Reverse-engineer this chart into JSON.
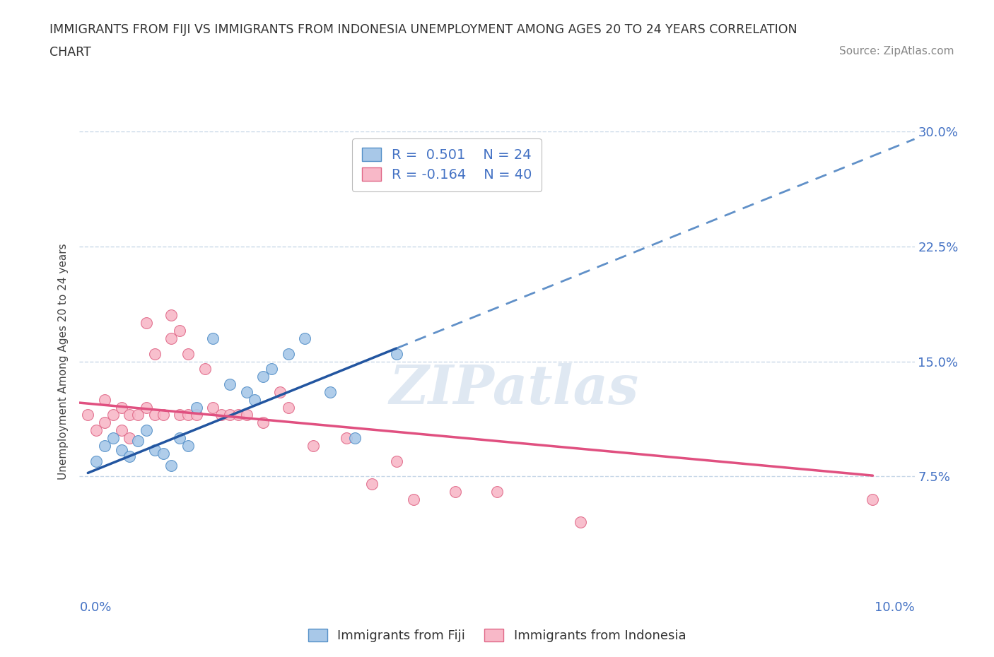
{
  "title_line1": "IMMIGRANTS FROM FIJI VS IMMIGRANTS FROM INDONESIA UNEMPLOYMENT AMONG AGES 20 TO 24 YEARS CORRELATION",
  "title_line2": "CHART",
  "source": "Source: ZipAtlas.com",
  "ylabel": "Unemployment Among Ages 20 to 24 years",
  "xlim": [
    0.0,
    0.1
  ],
  "ylim": [
    0.0,
    0.3
  ],
  "yticks": [
    0.075,
    0.15,
    0.225,
    0.3
  ],
  "ytick_labels": [
    "7.5%",
    "15.0%",
    "22.5%",
    "30.0%"
  ],
  "fiji_color": "#a8c8e8",
  "fiji_edge_color": "#5590c8",
  "indonesia_color": "#f8b8c8",
  "indonesia_edge_color": "#e06888",
  "fiji_R": 0.501,
  "fiji_N": 24,
  "indonesia_R": -0.164,
  "indonesia_N": 40,
  "legend_fiji_label": "Immigrants from Fiji",
  "legend_indonesia_label": "Immigrants from Indonesia",
  "fiji_line_color": "#2255a0",
  "fiji_dash_color": "#6090c8",
  "indonesia_line_color": "#e05080",
  "fiji_scatter_x": [
    0.002,
    0.003,
    0.004,
    0.005,
    0.006,
    0.007,
    0.008,
    0.009,
    0.01,
    0.011,
    0.012,
    0.013,
    0.014,
    0.016,
    0.018,
    0.02,
    0.021,
    0.022,
    0.023,
    0.025,
    0.027,
    0.03,
    0.033,
    0.038
  ],
  "fiji_scatter_y": [
    0.085,
    0.095,
    0.1,
    0.092,
    0.088,
    0.098,
    0.105,
    0.092,
    0.09,
    0.082,
    0.1,
    0.095,
    0.12,
    0.165,
    0.135,
    0.13,
    0.125,
    0.14,
    0.145,
    0.155,
    0.165,
    0.13,
    0.1,
    0.155
  ],
  "indonesia_scatter_x": [
    0.001,
    0.002,
    0.003,
    0.003,
    0.004,
    0.005,
    0.005,
    0.006,
    0.006,
    0.007,
    0.008,
    0.008,
    0.009,
    0.009,
    0.01,
    0.011,
    0.011,
    0.012,
    0.012,
    0.013,
    0.013,
    0.014,
    0.015,
    0.016,
    0.017,
    0.018,
    0.019,
    0.02,
    0.022,
    0.024,
    0.025,
    0.028,
    0.032,
    0.035,
    0.038,
    0.04,
    0.045,
    0.05,
    0.06,
    0.095
  ],
  "indonesia_scatter_y": [
    0.115,
    0.105,
    0.125,
    0.11,
    0.115,
    0.105,
    0.12,
    0.115,
    0.1,
    0.115,
    0.12,
    0.175,
    0.155,
    0.115,
    0.115,
    0.18,
    0.165,
    0.115,
    0.17,
    0.115,
    0.155,
    0.115,
    0.145,
    0.12,
    0.115,
    0.115,
    0.115,
    0.115,
    0.11,
    0.13,
    0.12,
    0.095,
    0.1,
    0.07,
    0.085,
    0.06,
    0.065,
    0.065,
    0.045,
    0.06
  ],
  "watermark": "ZIPatlas",
  "grid_color": "#c8d8e8",
  "tick_label_color": "#4472c4",
  "fiji_line_x_start": 0.001,
  "fiji_line_x_solid_end": 0.038,
  "fiji_line_x_dash_end": 0.1,
  "fiji_line_y_at_0": 0.075,
  "fiji_line_slope": 2.2,
  "indonesia_line_y_at_0": 0.123,
  "indonesia_line_slope": -0.5
}
